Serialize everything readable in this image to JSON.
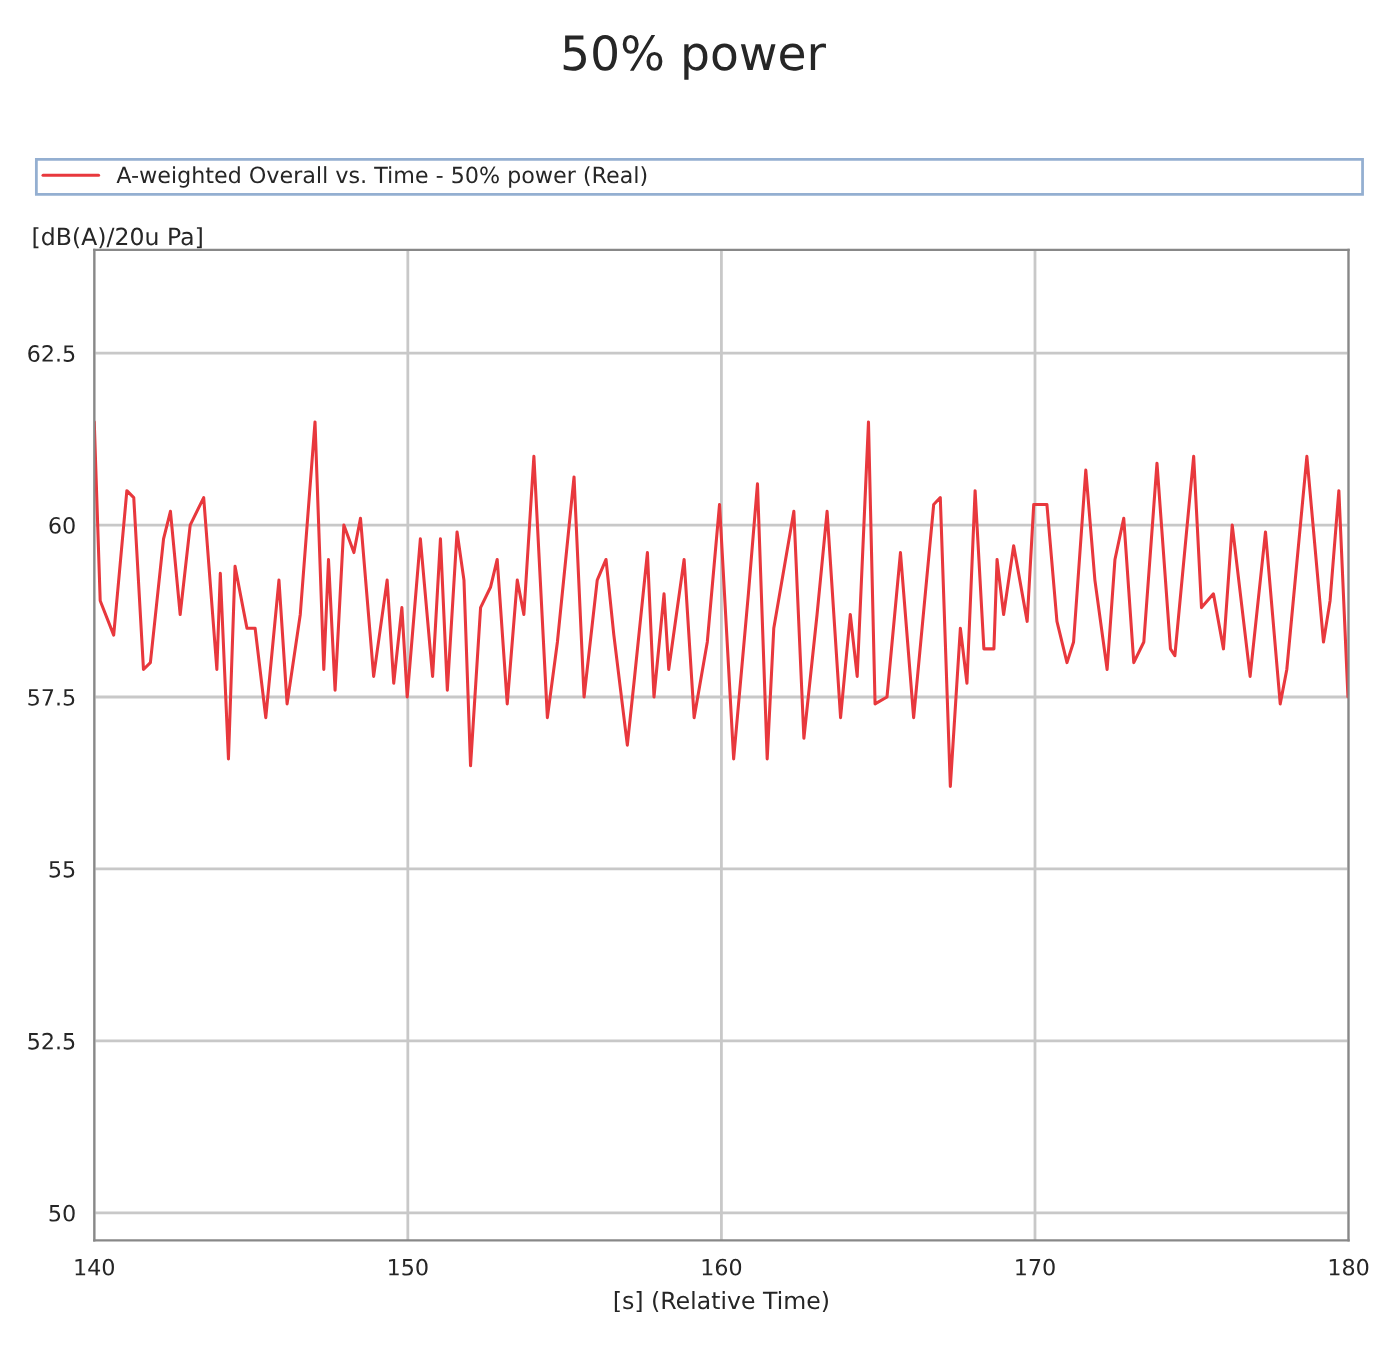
{
  "chart_data": {
    "type": "line",
    "title": "50% power",
    "xlabel": "[s] (Relative Time)",
    "ylabel": "[dB(A)/20u Pa]",
    "xlim": [
      140,
      180
    ],
    "xticks": [
      140,
      150,
      160,
      170,
      180
    ],
    "ylim": [
      49.6,
      64
    ],
    "yticks": [
      50,
      52.5,
      55,
      57.5,
      60,
      62.5
    ],
    "grid": true,
    "legend": "top",
    "series": [
      {
        "name": "A-weighted Overall vs. Time - 50% power (Real)",
        "color": "#e8383d",
        "x": [
          140.0,
          140.19,
          140.62,
          141.04,
          141.26,
          141.57,
          141.79,
          142.21,
          142.43,
          142.74,
          143.06,
          143.49,
          143.91,
          144.02,
          144.28,
          144.49,
          144.87,
          145.13,
          145.47,
          145.89,
          146.15,
          146.57,
          147.04,
          147.32,
          147.47,
          147.68,
          147.96,
          148.28,
          148.49,
          148.91,
          149.34,
          149.55,
          149.81,
          149.98,
          150.4,
          150.79,
          151.04,
          151.26,
          151.57,
          151.79,
          152.0,
          152.32,
          152.64,
          152.85,
          153.17,
          153.49,
          153.7,
          154.02,
          154.45,
          154.77,
          155.3,
          155.62,
          156.04,
          156.32,
          156.57,
          157.0,
          157.21,
          157.64,
          157.85,
          158.17,
          158.32,
          158.81,
          159.13,
          159.55,
          159.94,
          160.39,
          160.86,
          161.15,
          161.46,
          161.67,
          162.31,
          162.63,
          163.05,
          163.37,
          163.8,
          164.11,
          164.33,
          164.69,
          164.9,
          165.28,
          165.71,
          166.13,
          166.77,
          166.98,
          167.3,
          167.62,
          167.83,
          168.09,
          168.37,
          168.69,
          168.79,
          169.0,
          169.32,
          169.75,
          169.96,
          170.38,
          170.7,
          171.02,
          171.23,
          171.62,
          171.91,
          172.3,
          172.55,
          172.83,
          173.15,
          173.47,
          173.89,
          174.32,
          174.46,
          175.06,
          175.31,
          175.69,
          176.01,
          176.29,
          176.86,
          177.35,
          177.82,
          178.03,
          178.67,
          179.2,
          179.41,
          179.69,
          179.98
        ],
        "values": [
          61.5,
          58.9,
          58.4,
          60.5,
          60.4,
          57.9,
          58.0,
          59.8,
          60.2,
          58.7,
          60.0,
          60.4,
          57.9,
          59.3,
          56.6,
          59.4,
          58.5,
          58.5,
          57.2,
          59.2,
          57.4,
          58.7,
          61.5,
          57.9,
          59.5,
          57.6,
          60.0,
          59.6,
          60.1,
          57.8,
          59.2,
          57.7,
          58.8,
          57.5,
          59.8,
          57.8,
          59.8,
          57.6,
          59.9,
          59.2,
          56.5,
          58.8,
          59.1,
          59.5,
          57.4,
          59.2,
          58.7,
          61.0,
          57.2,
          58.3,
          60.7,
          57.5,
          59.2,
          59.5,
          58.4,
          56.8,
          57.7,
          59.6,
          57.5,
          59.0,
          57.9,
          59.5,
          57.2,
          58.3,
          60.3,
          56.6,
          59.0,
          60.6,
          56.6,
          58.5,
          60.2,
          56.9,
          58.7,
          60.2,
          57.2,
          58.7,
          57.8,
          61.5,
          57.4,
          57.5,
          59.6,
          57.2,
          60.3,
          60.4,
          56.2,
          58.5,
          57.7,
          60.5,
          58.2,
          58.2,
          59.5,
          58.7,
          59.7,
          58.6,
          60.3,
          60.3,
          58.6,
          58.0,
          58.3,
          60.8,
          59.2,
          57.9,
          59.5,
          60.1,
          58.0,
          58.3,
          60.9,
          58.2,
          58.1,
          61.0,
          58.8,
          59.0,
          58.2,
          60.0,
          57.8,
          59.9,
          57.4,
          57.9,
          61.0,
          58.3,
          58.9,
          60.5,
          57.5
        ]
      }
    ]
  }
}
